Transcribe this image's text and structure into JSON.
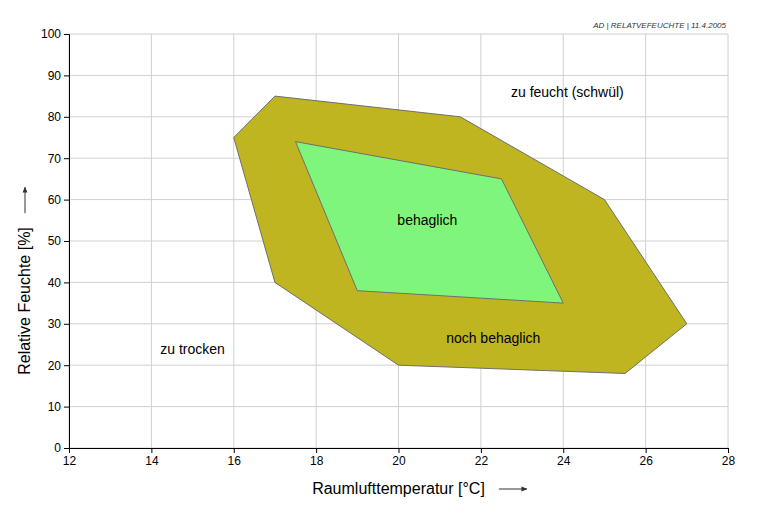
{
  "chart_data": {
    "type": "polygon",
    "subtitle": "AD | RELATVEFEUCHTE | 11.4.2005",
    "x_label": "Raumlufttemperatur [°C]",
    "y_label": "Relative Feuchte [%]",
    "xlim": [
      12,
      28
    ],
    "xticks": [
      12,
      14,
      16,
      18,
      20,
      22,
      24,
      26,
      28
    ],
    "ylim": [
      0,
      100
    ],
    "yticks": [
      0,
      10,
      20,
      30,
      40,
      50,
      60,
      70,
      80,
      90,
      100
    ],
    "grid": true,
    "series": [
      {
        "color": "#bfb521",
        "x": [
          16,
          17,
          21.5,
          25,
          27,
          25.5,
          20,
          17
        ],
        "values": [
          75,
          85,
          80,
          60,
          30,
          18,
          20,
          40
        ]
      },
      {
        "color": "#80f57c",
        "x": [
          17.5,
          22.5,
          24,
          19
        ],
        "values": [
          74,
          65,
          35,
          38
        ]
      }
    ],
    "annotations": [
      {
        "text": "zu feucht (schwül)",
        "x": 24.1,
        "y": 85.7
      },
      {
        "text": "behaglich",
        "x": 20.7,
        "y": 54.8
      },
      {
        "text": "noch behaglich",
        "x": 22.3,
        "y": 26.3
      },
      {
        "text": "zu trocken",
        "x": 15.0,
        "y": 23.7
      }
    ]
  }
}
